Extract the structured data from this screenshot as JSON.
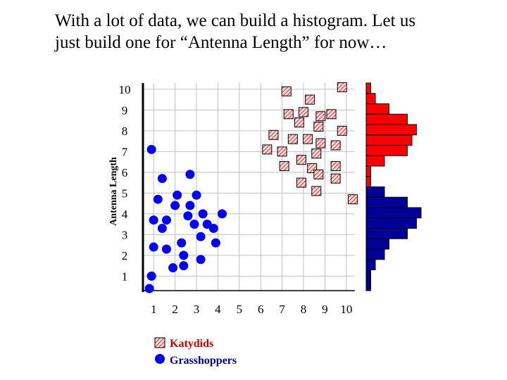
{
  "slide": {
    "title_line1": "With a lot of data, we can build a histogram. Let us",
    "title_line2": "just build one for “Antenna Length” for now…"
  },
  "chart_data": {
    "type": "scatter",
    "title": "",
    "xlabel": "",
    "ylabel": "Antenna Length",
    "xlim": [
      0.5,
      10.4
    ],
    "ylim": [
      0.3,
      10.3
    ],
    "x_ticks": [
      "1",
      "2",
      "3",
      "4",
      "5",
      "6",
      "7",
      "8",
      "9",
      "10"
    ],
    "y_ticks": [
      "1",
      "2",
      "3",
      "4",
      "5",
      "6",
      "7",
      "8",
      "9",
      "10"
    ],
    "grid": true,
    "legend_position": "bottom-left",
    "colors": {
      "katydid": "#ff0000",
      "katydid_fill": "#f5d6d6",
      "grasshopper": "#0000ff",
      "histogram_red": "#ff0000",
      "histogram_blue": "#000099",
      "grid": "#c0c0c0"
    },
    "series": [
      {
        "name": "Katydids",
        "marker": "hatched-square",
        "points": [
          [
            9.8,
            10.1
          ],
          [
            7.2,
            9.9
          ],
          [
            8.3,
            9.5
          ],
          [
            7.3,
            8.8
          ],
          [
            8.0,
            8.9
          ],
          [
            8.8,
            8.7
          ],
          [
            9.3,
            8.8
          ],
          [
            7.8,
            8.4
          ],
          [
            8.7,
            8.2
          ],
          [
            9.8,
            8.0
          ],
          [
            6.6,
            7.8
          ],
          [
            7.5,
            7.6
          ],
          [
            8.2,
            7.6
          ],
          [
            8.8,
            7.4
          ],
          [
            9.5,
            7.3
          ],
          [
            6.3,
            7.1
          ],
          [
            7.0,
            7.0
          ],
          [
            8.6,
            6.9
          ],
          [
            7.9,
            6.6
          ],
          [
            7.1,
            6.3
          ],
          [
            8.4,
            6.2
          ],
          [
            9.5,
            6.3
          ],
          [
            8.7,
            5.9
          ],
          [
            9.5,
            5.7
          ],
          [
            7.9,
            5.5
          ],
          [
            8.6,
            5.1
          ],
          [
            10.3,
            4.7
          ]
        ]
      },
      {
        "name": "Grasshoppers",
        "marker": "circle",
        "points": [
          [
            0.9,
            7.1
          ],
          [
            1.4,
            5.7
          ],
          [
            2.7,
            5.9
          ],
          [
            1.2,
            4.7
          ],
          [
            2.1,
            4.9
          ],
          [
            3.0,
            4.9
          ],
          [
            2.0,
            4.4
          ],
          [
            2.7,
            4.4
          ],
          [
            3.3,
            4.0
          ],
          [
            4.2,
            4.0
          ],
          [
            2.6,
            3.9
          ],
          [
            1.0,
            3.7
          ],
          [
            1.6,
            3.7
          ],
          [
            2.9,
            3.5
          ],
          [
            3.5,
            3.5
          ],
          [
            1.4,
            3.3
          ],
          [
            3.8,
            3.3
          ],
          [
            3.2,
            2.9
          ],
          [
            2.3,
            2.6
          ],
          [
            3.9,
            2.6
          ],
          [
            1.0,
            2.4
          ],
          [
            1.6,
            2.3
          ],
          [
            2.4,
            2.0
          ],
          [
            3.2,
            1.8
          ],
          [
            1.9,
            1.4
          ],
          [
            2.4,
            1.5
          ],
          [
            0.9,
            1.0
          ],
          [
            0.8,
            0.4
          ]
        ]
      }
    ],
    "histogram": {
      "orientation": "horizontal",
      "bin_width": 0.5,
      "katydid_bins": [
        {
          "y0": 9.8,
          "count": 1
        },
        {
          "y0": 9.3,
          "count": 2
        },
        {
          "y0": 8.8,
          "count": 5
        },
        {
          "y0": 8.3,
          "count": 9
        },
        {
          "y0": 7.8,
          "count": 11
        },
        {
          "y0": 7.3,
          "count": 10
        },
        {
          "y0": 6.8,
          "count": 9
        },
        {
          "y0": 6.3,
          "count": 4
        },
        {
          "y0": 5.8,
          "count": 1
        },
        {
          "y0": 5.3,
          "count": 1
        }
      ],
      "grasshopper_bins": [
        {
          "y0": 4.8,
          "count": 4
        },
        {
          "y0": 4.3,
          "count": 9
        },
        {
          "y0": 3.8,
          "count": 12
        },
        {
          "y0": 3.3,
          "count": 11
        },
        {
          "y0": 2.8,
          "count": 9
        },
        {
          "y0": 2.3,
          "count": 5
        },
        {
          "y0": 1.8,
          "count": 4
        },
        {
          "y0": 1.3,
          "count": 2
        },
        {
          "y0": 0.8,
          "count": 1
        },
        {
          "y0": 0.3,
          "count": 1
        }
      ]
    }
  },
  "legend": {
    "katydids_label": "Katydids",
    "grasshoppers_label": "Grasshoppers"
  }
}
